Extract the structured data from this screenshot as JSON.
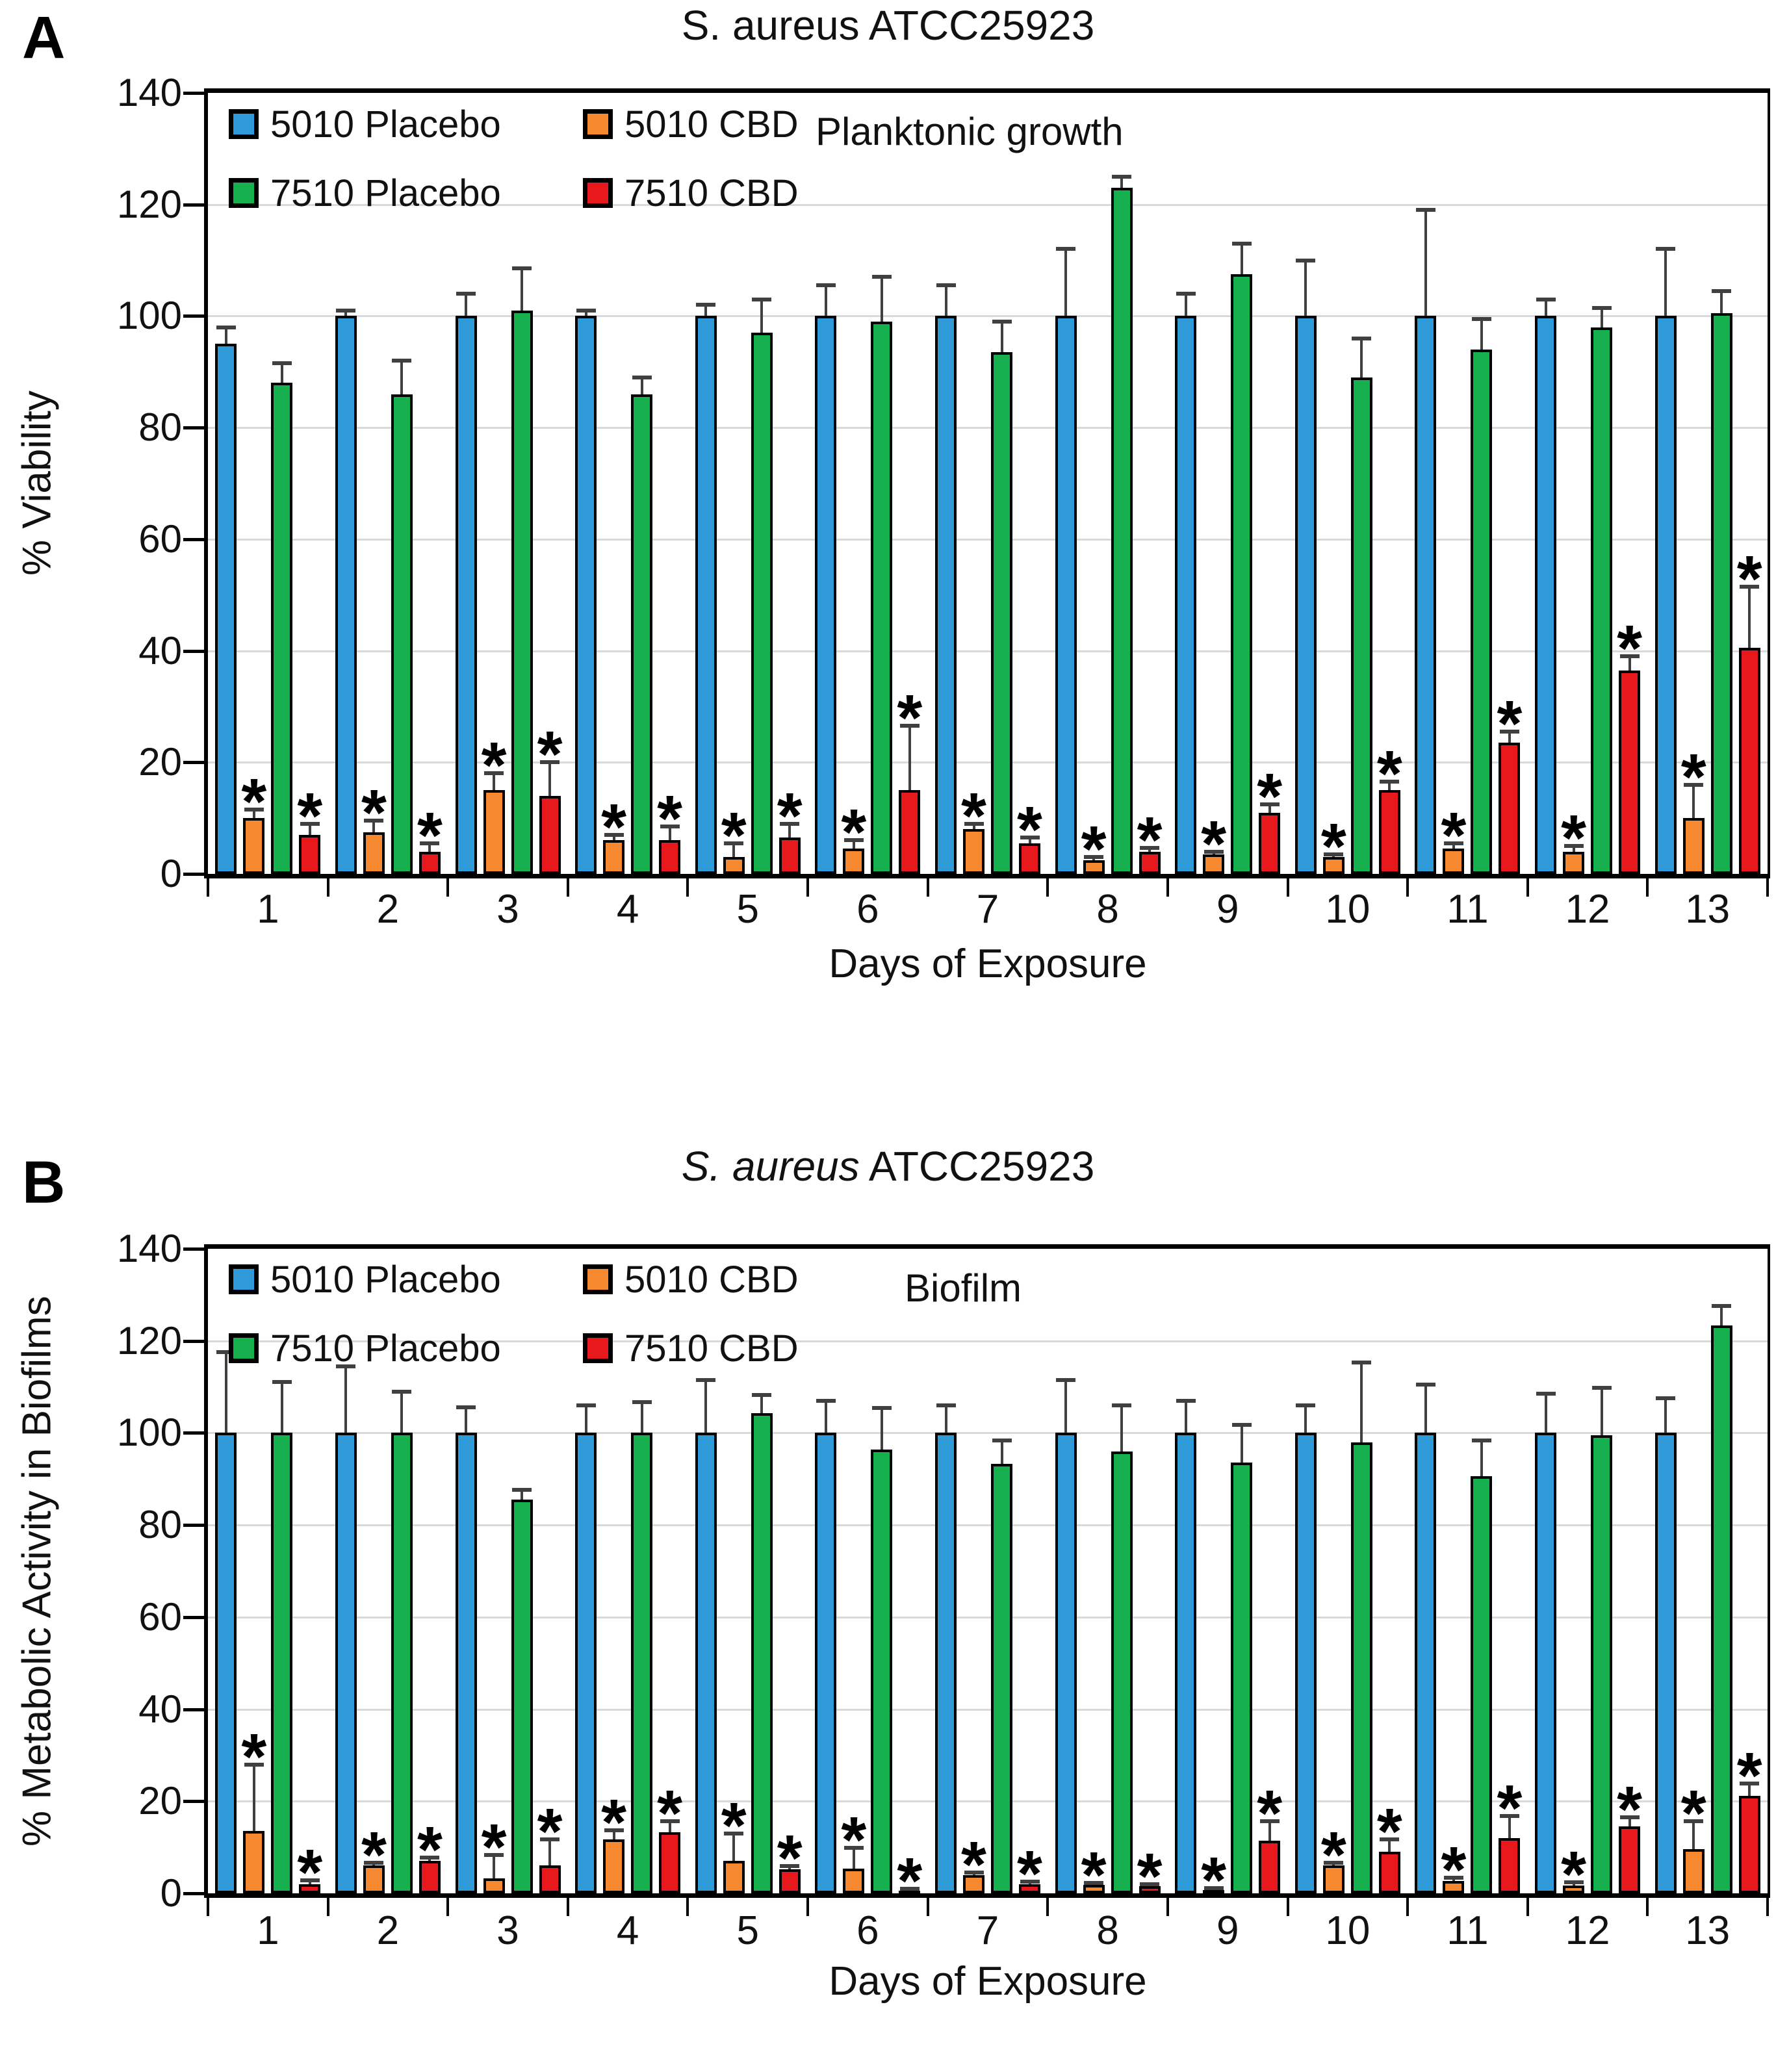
{
  "chart_data": [
    {
      "panel_label": "A",
      "type": "bar",
      "title": "S. aureus ATCC25923",
      "title_prefix": "S. aureus",
      "title_suffix": " ATCC25923",
      "title_prefix_italic": false,
      "subtitle": "Planktonic growth",
      "xlabel": "Days of Exposure",
      "ylabel": "% Viability",
      "ylim": [
        0,
        140
      ],
      "yticks": [
        0,
        20,
        40,
        60,
        80,
        100,
        120,
        140
      ],
      "grid": true,
      "legend_position": "top-left-inside",
      "error_bars": "upper",
      "significance_marker": "*",
      "categories": [
        "1",
        "2",
        "3",
        "4",
        "5",
        "6",
        "7",
        "8",
        "9",
        "10",
        "11",
        "12",
        "13"
      ],
      "series": [
        {
          "name": "5010 Placebo",
          "color": "#2E9BD8",
          "values": [
            95,
            100,
            100,
            100,
            100,
            100,
            100,
            100,
            100,
            100,
            100,
            100,
            100
          ],
          "errors_up": [
            3,
            1,
            4,
            1,
            2,
            5.5,
            5.5,
            12,
            4,
            10,
            19,
            3,
            12
          ],
          "significant": [
            false,
            false,
            false,
            false,
            false,
            false,
            false,
            false,
            false,
            false,
            false,
            false,
            false
          ]
        },
        {
          "name": "5010 CBD",
          "color": "#F6892F",
          "values": [
            10,
            7.5,
            15,
            6,
            3,
            4.5,
            8,
            2.5,
            3.5,
            3,
            4.5,
            4,
            10
          ],
          "errors_up": [
            1.5,
            2,
            3,
            1,
            2.5,
            1.5,
            1,
            0.5,
            0.5,
            0.5,
            1,
            1,
            6
          ],
          "significant": [
            true,
            true,
            true,
            true,
            true,
            true,
            true,
            true,
            true,
            true,
            true,
            true,
            true
          ]
        },
        {
          "name": "7510 Placebo",
          "color": "#17B04F",
          "values": [
            88,
            86,
            101,
            86,
            97,
            99,
            93.5,
            123,
            107.5,
            89,
            94,
            98,
            100.5
          ],
          "errors_up": [
            3.5,
            6,
            7.5,
            3,
            6,
            8,
            5.5,
            2,
            5.5,
            7,
            5.5,
            3.5,
            4
          ],
          "significant": [
            false,
            false,
            false,
            false,
            false,
            false,
            false,
            false,
            false,
            false,
            false,
            false,
            false
          ]
        },
        {
          "name": "7510 CBD",
          "color": "#E8191C",
          "values": [
            7,
            4,
            14,
            6,
            6.5,
            15,
            5.5,
            4,
            11,
            15,
            23.5,
            36.5,
            40.5
          ],
          "errors_up": [
            2,
            1.5,
            6,
            2.5,
            2.5,
            11.5,
            1,
            0.7,
            1.5,
            1.5,
            2,
            2.5,
            11
          ],
          "significant": [
            true,
            true,
            true,
            true,
            true,
            true,
            true,
            true,
            true,
            true,
            true,
            true,
            true
          ]
        }
      ]
    },
    {
      "panel_label": "B",
      "type": "bar",
      "title": "S. aureus ATCC25923",
      "title_prefix": "S. aureus",
      "title_suffix": " ATCC25923",
      "title_prefix_italic": true,
      "subtitle": "Biofilm",
      "xlabel": "Days of Exposure",
      "ylabel": "% Metabolic Activity in Biofilms",
      "ylim": [
        0,
        140
      ],
      "yticks": [
        0,
        20,
        40,
        60,
        80,
        100,
        120,
        140
      ],
      "grid": true,
      "legend_position": "top-left-inside",
      "error_bars": "upper",
      "significance_marker": "*",
      "categories": [
        "1",
        "2",
        "3",
        "4",
        "5",
        "6",
        "7",
        "8",
        "9",
        "10",
        "11",
        "12",
        "13"
      ],
      "series": [
        {
          "name": "5010 Placebo",
          "color": "#2E9BD8",
          "values": [
            100,
            100,
            100,
            100,
            100,
            100,
            100,
            100,
            100,
            100,
            100,
            100,
            100
          ],
          "errors_up": [
            17.5,
            14.5,
            5.5,
            6,
            11.5,
            7,
            6,
            11.5,
            7,
            6,
            10.5,
            8.5,
            7.5
          ],
          "significant": [
            false,
            false,
            false,
            false,
            false,
            false,
            false,
            false,
            false,
            false,
            false,
            false,
            false
          ]
        },
        {
          "name": "5010 CBD",
          "color": "#F6892F",
          "values": [
            13.5,
            6,
            3.3,
            11.7,
            7,
            5.4,
            4,
            1.8,
            0.7,
            6,
            2.7,
            1.7,
            9.6
          ],
          "errors_up": [
            14.5,
            0.7,
            5,
            2,
            6,
            4.5,
            0.5,
            0.4,
            0.4,
            0.7,
            0.7,
            0.7,
            6
          ],
          "significant": [
            true,
            true,
            true,
            true,
            true,
            true,
            true,
            true,
            true,
            true,
            true,
            true,
            true
          ]
        },
        {
          "name": "7510 Placebo",
          "color": "#17B04F",
          "values": [
            100,
            100,
            85.5,
            100,
            104.3,
            96.4,
            93.3,
            96,
            93.5,
            98,
            90.6,
            99.5,
            123.3
          ],
          "errors_up": [
            11,
            9,
            2.2,
            6.7,
            4,
            9,
            5,
            10,
            8.3,
            17.3,
            7.7,
            10.3,
            4.3
          ],
          "significant": [
            false,
            false,
            false,
            false,
            false,
            false,
            false,
            false,
            false,
            false,
            false,
            false,
            false
          ]
        },
        {
          "name": "7510 CBD",
          "color": "#E8191C",
          "values": [
            2,
            7.1,
            6.1,
            13.3,
            5.2,
            0.5,
            2,
            1.6,
            11.4,
            9.1,
            12,
            14.6,
            21.1
          ],
          "errors_up": [
            0.8,
            0.7,
            5.6,
            2.4,
            0.7,
            0.5,
            0.6,
            0.4,
            4.3,
            2.6,
            4.8,
            1.9,
            2.7
          ],
          "significant": [
            true,
            true,
            true,
            true,
            true,
            true,
            true,
            true,
            true,
            true,
            true,
            true,
            true
          ]
        }
      ]
    }
  ]
}
